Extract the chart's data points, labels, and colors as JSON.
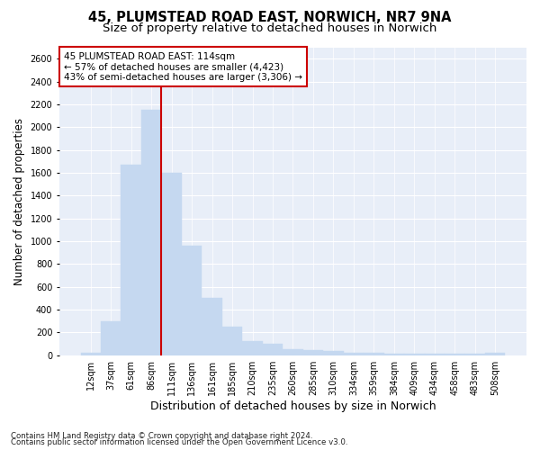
{
  "title_line1": "45, PLUMSTEAD ROAD EAST, NORWICH, NR7 9NA",
  "title_line2": "Size of property relative to detached houses in Norwich",
  "xlabel": "Distribution of detached houses by size in Norwich",
  "ylabel": "Number of detached properties",
  "categories": [
    "12sqm",
    "37sqm",
    "61sqm",
    "86sqm",
    "111sqm",
    "136sqm",
    "161sqm",
    "185sqm",
    "210sqm",
    "235sqm",
    "260sqm",
    "285sqm",
    "310sqm",
    "334sqm",
    "359sqm",
    "384sqm",
    "409sqm",
    "434sqm",
    "458sqm",
    "483sqm",
    "508sqm"
  ],
  "values": [
    25,
    300,
    1670,
    2150,
    1600,
    960,
    500,
    250,
    120,
    100,
    50,
    45,
    35,
    20,
    20,
    15,
    15,
    10,
    10,
    10,
    20
  ],
  "bar_color": "#c5d8f0",
  "bar_edgecolor": "#c5d8f0",
  "vline_index": 4,
  "vline_color": "#cc0000",
  "ylim": [
    0,
    2700
  ],
  "yticks": [
    0,
    200,
    400,
    600,
    800,
    1000,
    1200,
    1400,
    1600,
    1800,
    2000,
    2200,
    2400,
    2600
  ],
  "annotation_text": "45 PLUMSTEAD ROAD EAST: 114sqm\n← 57% of detached houses are smaller (4,423)\n43% of semi-detached houses are larger (3,306) →",
  "annotation_box_facecolor": "#ffffff",
  "annotation_box_edgecolor": "#cc0000",
  "footer_line1": "Contains HM Land Registry data © Crown copyright and database right 2024.",
  "footer_line2": "Contains public sector information licensed under the Open Government Licence v3.0.",
  "background_color": "#ffffff",
  "plot_background": "#e8eef8",
  "grid_color": "#ffffff",
  "title_fontsize": 10.5,
  "subtitle_fontsize": 9.5,
  "ylabel_fontsize": 8.5,
  "xlabel_fontsize": 9,
  "tick_fontsize": 7,
  "annotation_fontsize": 7.5,
  "footer_fontsize": 6.2
}
